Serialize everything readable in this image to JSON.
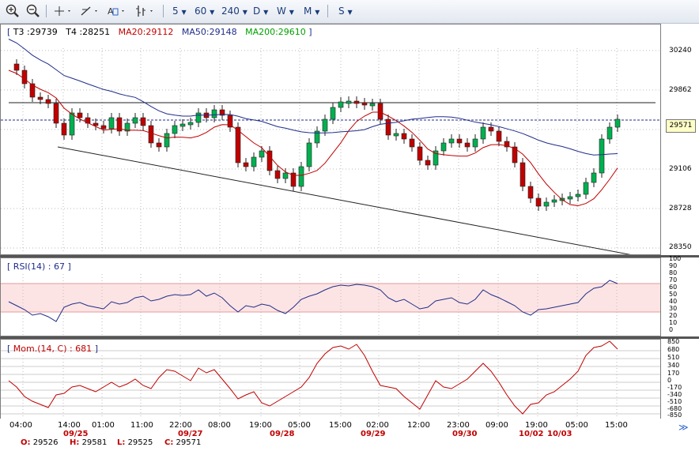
{
  "toolbar": {
    "icons": [
      "zoom-in-icon",
      "zoom-out-icon",
      "crosshair-icon",
      "line-tool-icon",
      "text-tool-icon",
      "bar-type-icon"
    ],
    "intervals": [
      "5",
      "60",
      "240",
      "D",
      "W",
      "M"
    ],
    "s_label": "S"
  },
  "main": {
    "legend": {
      "t3": "T3 :29739",
      "t4": "T4 :28251",
      "ma20": "MA20:29112",
      "ma50": "MA50:29148",
      "ma200": "MA200:29610"
    },
    "axis": [
      "30240",
      "29862",
      "29106",
      "28728",
      "28350"
    ],
    "price_tag": "29571",
    "colors": {
      "ma20": "#c00000",
      "ma50": "#1f2d8a",
      "ma200": "#00a000",
      "up": "#00b050",
      "down": "#c00000"
    }
  },
  "rsi": {
    "label": "RSI(14) : 67",
    "axis": [
      "100",
      "90",
      "80",
      "70",
      "60",
      "50",
      "40",
      "30",
      "20",
      "10",
      "0"
    ]
  },
  "mom": {
    "label": "Mom.(14, C) : 681",
    "axis": [
      "850",
      "680",
      "510",
      "340",
      "170",
      "0",
      "-170",
      "-340",
      "-510",
      "-680",
      "-850"
    ]
  },
  "time_axis": {
    "times": [
      "04:00",
      "14:00",
      "01:00",
      "11:00",
      "22:00",
      "08:00",
      "19:00",
      "05:00",
      "15:00",
      "02:00",
      "12:00",
      "23:00",
      "09:00",
      "19:00",
      "05:00",
      "15:00"
    ],
    "dates": [
      "09/25",
      "09/27",
      "09/28",
      "09/29",
      "09/30",
      "10/02",
      "10/03"
    ]
  },
  "ohlc": {
    "o_label": "O:",
    "o": "29526",
    "h_label": "H:",
    "h": "29581",
    "l_label": "L:",
    "l": "29525",
    "c_label": "C:",
    "c": "29571"
  },
  "scroll_icon": "≫"
}
